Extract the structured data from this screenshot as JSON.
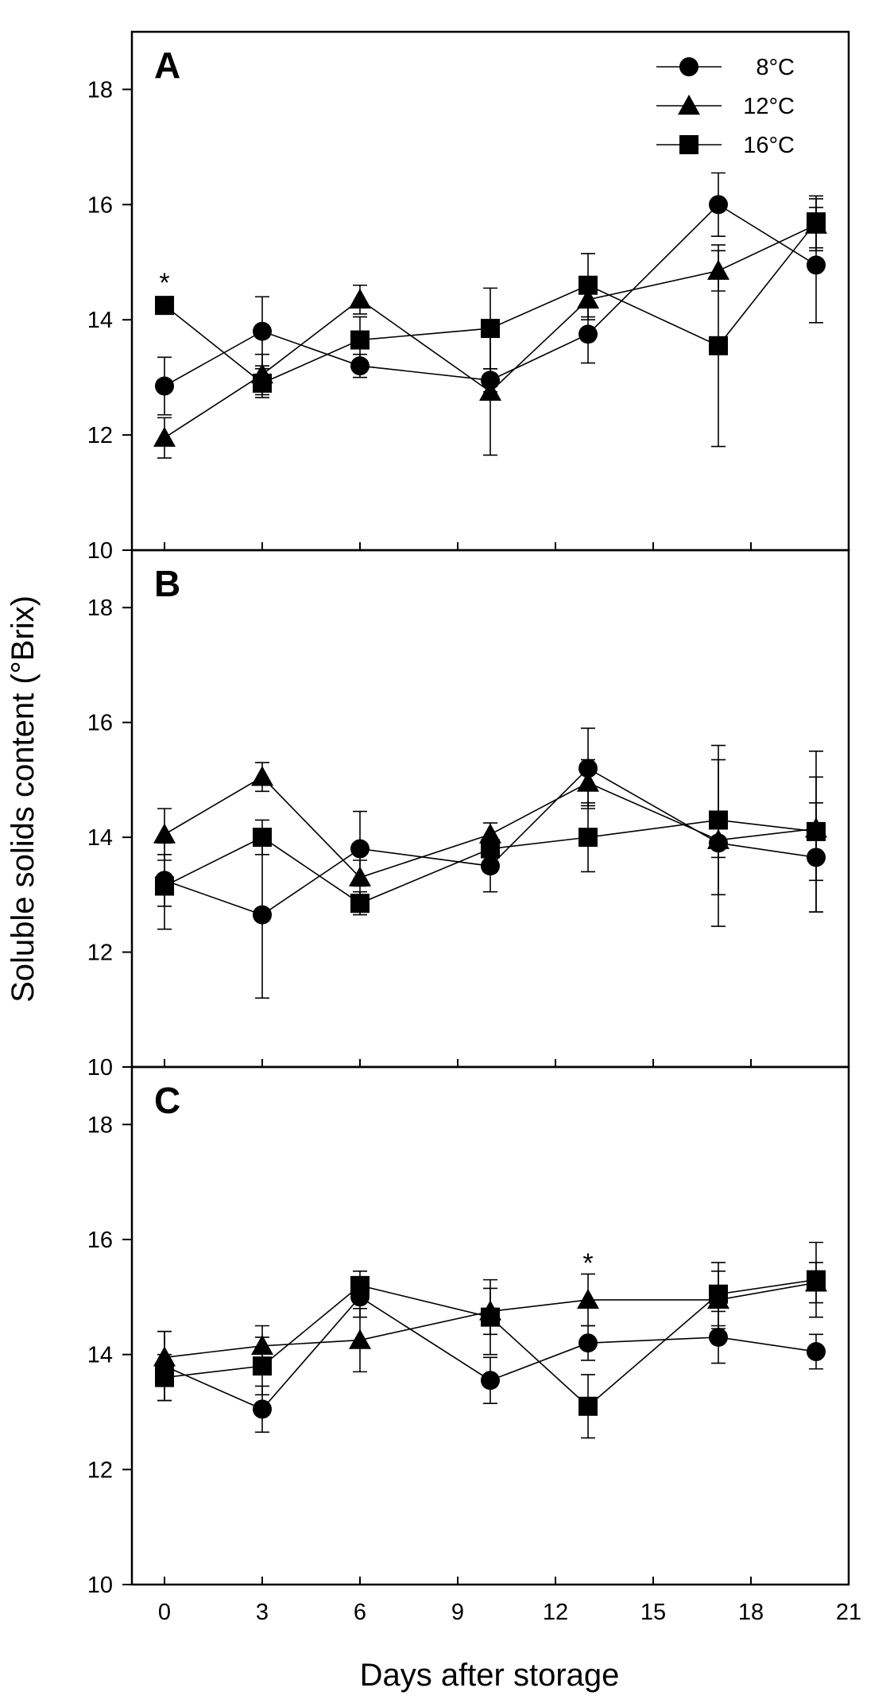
{
  "chart_data": {
    "type": "line",
    "ylabel": "Soluble solids content (°Brix)",
    "xlabel": "Days after storage",
    "xlim": [
      -1,
      21
    ],
    "xticks": [
      0,
      3,
      6,
      9,
      12,
      15,
      18,
      21
    ],
    "ylim": [
      10,
      19
    ],
    "yticks": [
      10,
      12,
      14,
      16,
      18
    ],
    "x": [
      0,
      3,
      6,
      10,
      13,
      17,
      20
    ],
    "legend": {
      "position": "top-right",
      "entries": [
        {
          "label": "8°C",
          "marker": "circle"
        },
        {
          "label": "12°C",
          "marker": "triangle"
        },
        {
          "label": "16°C",
          "marker": "square"
        }
      ]
    },
    "panels": [
      {
        "label": "A",
        "series": [
          {
            "name": "8°C",
            "marker": "circle",
            "values": [
              12.85,
              13.8,
              13.2,
              12.95,
              13.75,
              16.0,
              14.95
            ],
            "errors": [
              0.5,
              0.6,
              0.2,
              0.2,
              0.5,
              0.55,
              1.0
            ]
          },
          {
            "name": "12°C",
            "marker": "triangle",
            "values": [
              11.95,
              13.05,
              14.35,
              12.75,
              14.35,
              14.85,
              15.65
            ],
            "errors": [
              0.35,
              0.35,
              0.25,
              1.1,
              0.35,
              0.35,
              0.45
            ]
          },
          {
            "name": "16°C",
            "marker": "square",
            "values": [
              14.25,
              12.9,
              13.65,
              13.85,
              14.6,
              13.55,
              15.7
            ],
            "errors": [
              0.0,
              0.25,
              0.4,
              0.7,
              0.55,
              1.75,
              0.45
            ]
          }
        ],
        "annotations": [
          {
            "text": "*",
            "x": 0,
            "y": 14.65
          }
        ]
      },
      {
        "label": "B",
        "series": [
          {
            "name": "8°C",
            "marker": "circle",
            "values": [
              13.25,
              12.65,
              13.8,
              13.5,
              15.2,
              13.9,
              13.65
            ],
            "errors": [
              0.45,
              1.45,
              0.65,
              0.45,
              0.7,
              1.45,
              0.95
            ]
          },
          {
            "name": "12°C",
            "marker": "triangle",
            "values": [
              14.05,
              15.05,
              13.3,
              14.05,
              14.95,
              13.95,
              14.15
            ],
            "errors": [
              0.45,
              0.25,
              0.3,
              0.2,
              0.4,
              0.3,
              0.9
            ]
          },
          {
            "name": "16°C",
            "marker": "square",
            "values": [
              13.15,
              14.0,
              12.85,
              13.8,
              14.0,
              14.3,
              14.1
            ],
            "errors": [
              0.75,
              0.3,
              0.2,
              0.2,
              0.6,
              1.3,
              1.4
            ]
          }
        ],
        "annotations": []
      },
      {
        "label": "C",
        "series": [
          {
            "name": "8°C",
            "marker": "circle",
            "values": [
              13.8,
              13.05,
              15.0,
              13.55,
              14.2,
              14.3,
              14.05
            ],
            "errors": [
              0.6,
              0.4,
              0.35,
              0.4,
              0.3,
              0.45,
              0.3
            ]
          },
          {
            "name": "12°C",
            "marker": "triangle",
            "values": [
              13.95,
              14.15,
              14.25,
              14.75,
              14.95,
              14.95,
              15.25
            ],
            "errors": [
              0.45,
              0.35,
              0.55,
              0.4,
              0.45,
              0.5,
              0.35
            ]
          },
          {
            "name": "16°C",
            "marker": "square",
            "values": [
              13.6,
              13.8,
              15.2,
              14.65,
              13.1,
              15.05,
              15.3
            ],
            "errors": [
              0.4,
              0.5,
              0.25,
              0.65,
              0.55,
              0.55,
              0.65
            ]
          }
        ],
        "annotations": [
          {
            "text": "*",
            "x": 13,
            "y": 15.6
          }
        ]
      }
    ]
  }
}
